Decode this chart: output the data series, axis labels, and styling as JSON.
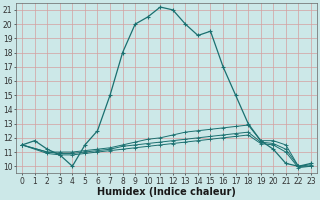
{
  "xlabel": "Humidex (Indice chaleur)",
  "bg_color": "#cce8e8",
  "line_color": "#1a7070",
  "grid_color_major": "#e8a0a0",
  "grid_color_minor": "#d8d8d8",
  "xlim": [
    -0.5,
    23.5
  ],
  "ylim": [
    9.5,
    21.5
  ],
  "xticks": [
    0,
    1,
    2,
    3,
    4,
    5,
    6,
    7,
    8,
    9,
    10,
    11,
    12,
    13,
    14,
    15,
    16,
    17,
    18,
    19,
    20,
    21,
    22,
    23
  ],
  "yticks": [
    10,
    11,
    12,
    13,
    14,
    15,
    16,
    17,
    18,
    19,
    20,
    21
  ],
  "series1_x": [
    0,
    1,
    2,
    3,
    4,
    5,
    6,
    7,
    8,
    9,
    10,
    11,
    12,
    13,
    14,
    15,
    16,
    17,
    18,
    19,
    20,
    21,
    22,
    23
  ],
  "series1_y": [
    11.5,
    11.8,
    11.2,
    10.8,
    10.0,
    11.5,
    12.5,
    15.0,
    18.0,
    20.0,
    20.5,
    21.2,
    21.0,
    20.0,
    19.2,
    19.5,
    17.0,
    15.0,
    13.0,
    11.8,
    11.2,
    10.2,
    10.0,
    10.2
  ],
  "series2_x": [
    0,
    2,
    3,
    4,
    5,
    6,
    7,
    8,
    9,
    10,
    11,
    12,
    13,
    14,
    15,
    16,
    17,
    18,
    19,
    20,
    21,
    22,
    23
  ],
  "series2_y": [
    11.5,
    11.0,
    11.0,
    11.0,
    11.1,
    11.2,
    11.3,
    11.5,
    11.7,
    11.9,
    12.0,
    12.2,
    12.4,
    12.5,
    12.6,
    12.7,
    12.8,
    12.9,
    11.8,
    11.8,
    11.5,
    10.0,
    10.1
  ],
  "series3_x": [
    0,
    2,
    3,
    4,
    5,
    6,
    7,
    8,
    9,
    10,
    11,
    12,
    13,
    14,
    15,
    16,
    17,
    18,
    19,
    20,
    21,
    22,
    23
  ],
  "series3_y": [
    11.5,
    11.0,
    10.9,
    10.9,
    11.0,
    11.1,
    11.2,
    11.4,
    11.5,
    11.6,
    11.7,
    11.8,
    11.9,
    12.0,
    12.1,
    12.2,
    12.3,
    12.4,
    11.7,
    11.6,
    11.2,
    10.0,
    10.0
  ],
  "series4_x": [
    0,
    2,
    3,
    4,
    5,
    6,
    7,
    8,
    9,
    10,
    11,
    12,
    13,
    14,
    15,
    16,
    17,
    18,
    19,
    20,
    21,
    22,
    23
  ],
  "series4_y": [
    11.5,
    10.9,
    10.8,
    10.8,
    10.9,
    11.0,
    11.1,
    11.2,
    11.3,
    11.4,
    11.5,
    11.6,
    11.7,
    11.8,
    11.9,
    12.0,
    12.1,
    12.2,
    11.6,
    11.5,
    11.0,
    9.9,
    10.0
  ],
  "xlabel_fontsize": 7,
  "tick_fontsize": 5.5
}
